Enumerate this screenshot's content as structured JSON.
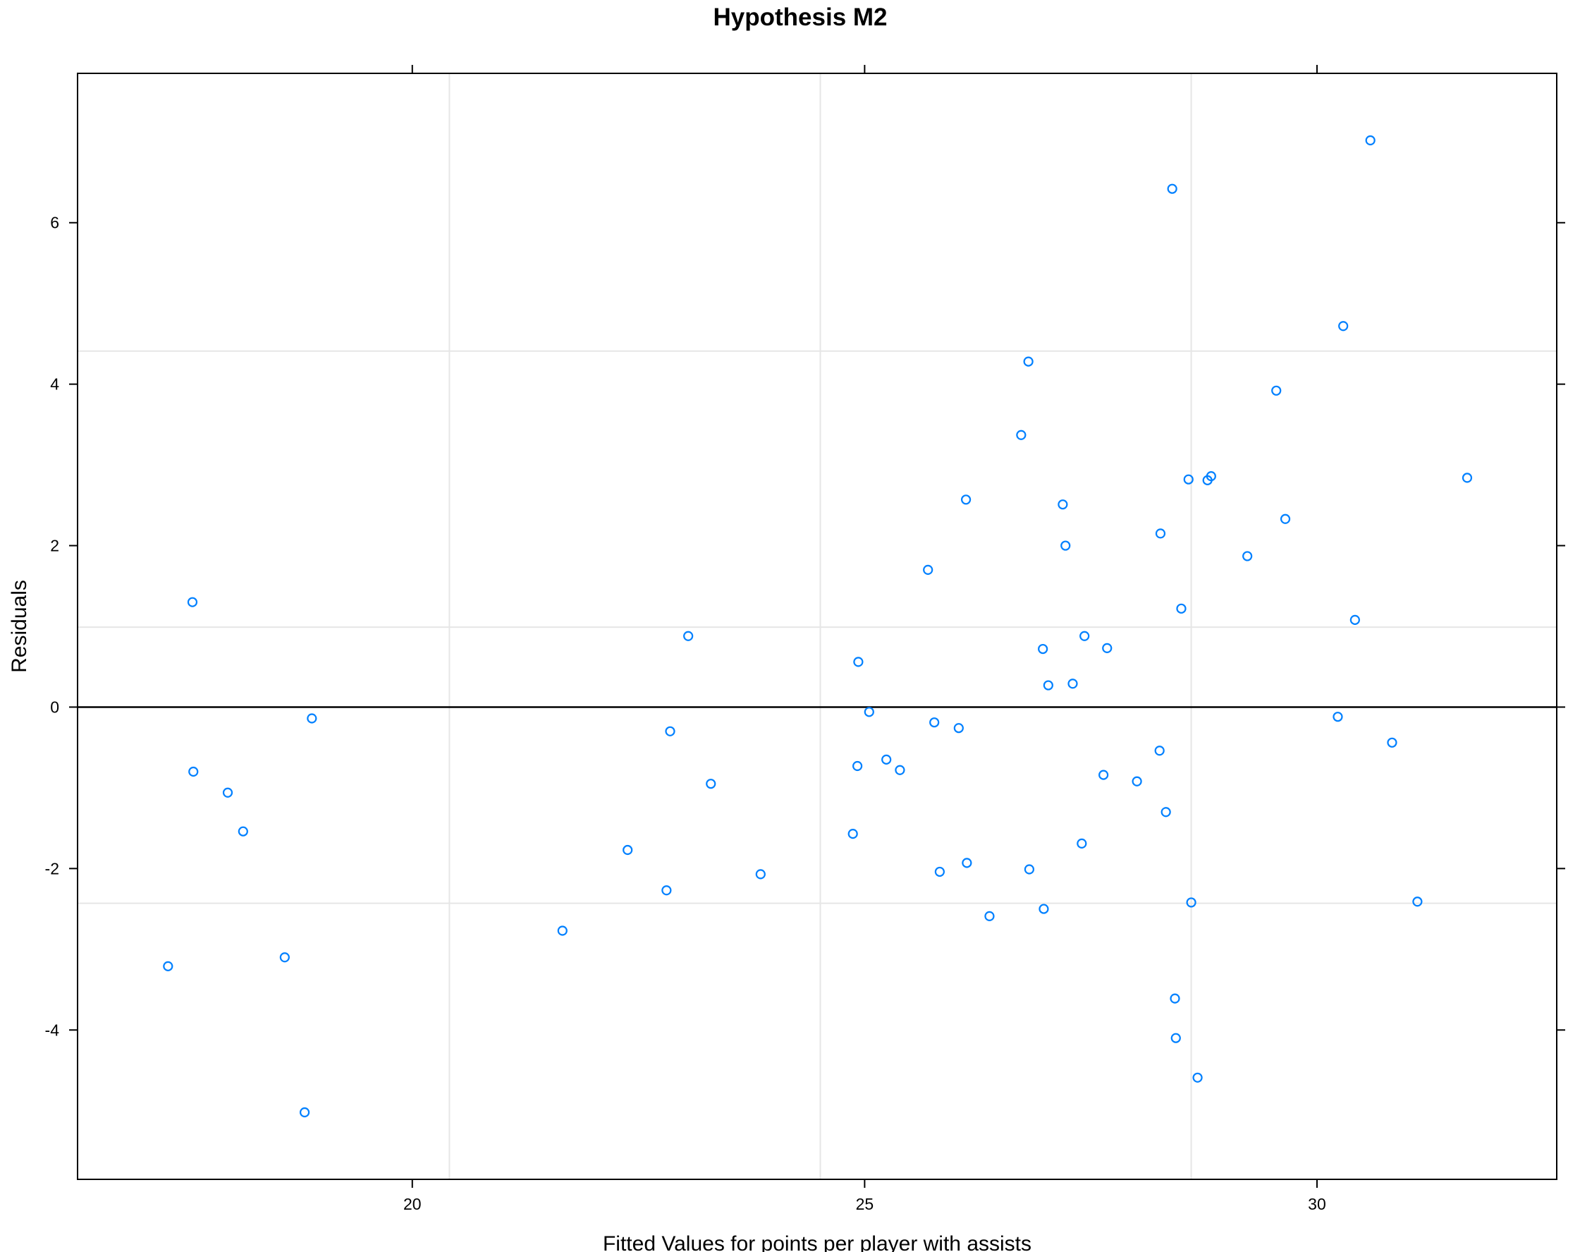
{
  "chart_data": {
    "type": "scatter",
    "title": "Hypothesis M2",
    "xlabel": "Fitted Values for points per player with assists",
    "ylabel": "Residuals",
    "xlim": [
      16.3,
      32.65
    ],
    "ylim": [
      -5.85,
      7.85
    ],
    "xticks": [
      20,
      25,
      30
    ],
    "yticks": [
      -4,
      -2,
      0,
      2,
      4,
      6
    ],
    "xtick_labels": [
      "20",
      "25",
      "30"
    ],
    "ytick_labels": [
      "-4",
      "-2",
      "0",
      "2",
      "4",
      "6"
    ],
    "x_gridlines": [
      20.41,
      24.51,
      28.61
    ],
    "y_gridlines": [
      -2.43,
      0.99,
      4.41
    ],
    "reference_line": 0,
    "grid": true,
    "point_color": "#0080ff",
    "points": [
      {
        "x": 17.3,
        "y": -3.21
      },
      {
        "x": 17.57,
        "y": 1.3
      },
      {
        "x": 17.58,
        "y": -0.8
      },
      {
        "x": 17.96,
        "y": -1.06
      },
      {
        "x": 18.13,
        "y": -1.54
      },
      {
        "x": 18.59,
        "y": -3.1
      },
      {
        "x": 18.81,
        "y": -5.02
      },
      {
        "x": 18.89,
        "y": -0.14
      },
      {
        "x": 21.66,
        "y": -2.77
      },
      {
        "x": 22.38,
        "y": -1.77
      },
      {
        "x": 22.81,
        "y": -2.27
      },
      {
        "x": 22.85,
        "y": -0.3
      },
      {
        "x": 23.05,
        "y": 0.88
      },
      {
        "x": 23.3,
        "y": -0.95
      },
      {
        "x": 23.85,
        "y": -2.07
      },
      {
        "x": 24.87,
        "y": -1.57
      },
      {
        "x": 24.92,
        "y": -0.73
      },
      {
        "x": 24.93,
        "y": 0.56
      },
      {
        "x": 25.05,
        "y": -0.06
      },
      {
        "x": 25.24,
        "y": -0.65
      },
      {
        "x": 25.39,
        "y": -0.78
      },
      {
        "x": 25.7,
        "y": 1.7
      },
      {
        "x": 25.77,
        "y": -0.19
      },
      {
        "x": 25.83,
        "y": -2.04
      },
      {
        "x": 26.04,
        "y": -0.26
      },
      {
        "x": 26.12,
        "y": 2.57
      },
      {
        "x": 26.13,
        "y": -1.93
      },
      {
        "x": 26.38,
        "y": -2.59
      },
      {
        "x": 26.73,
        "y": 3.37
      },
      {
        "x": 26.81,
        "y": 4.28
      },
      {
        "x": 26.82,
        "y": -2.01
      },
      {
        "x": 26.97,
        "y": 0.72
      },
      {
        "x": 26.98,
        "y": -2.5
      },
      {
        "x": 27.03,
        "y": 0.27
      },
      {
        "x": 27.19,
        "y": 2.51
      },
      {
        "x": 27.22,
        "y": 2.0
      },
      {
        "x": 27.3,
        "y": 0.29
      },
      {
        "x": 27.4,
        "y": -1.69
      },
      {
        "x": 27.43,
        "y": 0.88
      },
      {
        "x": 27.64,
        "y": -0.84
      },
      {
        "x": 27.68,
        "y": 0.73
      },
      {
        "x": 28.01,
        "y": -0.92
      },
      {
        "x": 28.26,
        "y": -0.54
      },
      {
        "x": 28.27,
        "y": 2.15
      },
      {
        "x": 28.33,
        "y": -1.3
      },
      {
        "x": 28.4,
        "y": 6.42
      },
      {
        "x": 28.43,
        "y": -3.61
      },
      {
        "x": 28.44,
        "y": -4.1
      },
      {
        "x": 28.5,
        "y": 1.22
      },
      {
        "x": 28.58,
        "y": 2.82
      },
      {
        "x": 28.61,
        "y": -2.42
      },
      {
        "x": 28.68,
        "y": -4.59
      },
      {
        "x": 28.79,
        "y": 2.81
      },
      {
        "x": 28.83,
        "y": 2.86
      },
      {
        "x": 29.23,
        "y": 1.87
      },
      {
        "x": 29.55,
        "y": 3.92
      },
      {
        "x": 29.65,
        "y": 2.33
      },
      {
        "x": 30.23,
        "y": -0.12
      },
      {
        "x": 30.29,
        "y": 4.72
      },
      {
        "x": 30.42,
        "y": 1.08
      },
      {
        "x": 30.59,
        "y": 7.02
      },
      {
        "x": 30.83,
        "y": -0.44
      },
      {
        "x": 31.11,
        "y": -2.41
      },
      {
        "x": 31.66,
        "y": 2.84
      }
    ]
  }
}
